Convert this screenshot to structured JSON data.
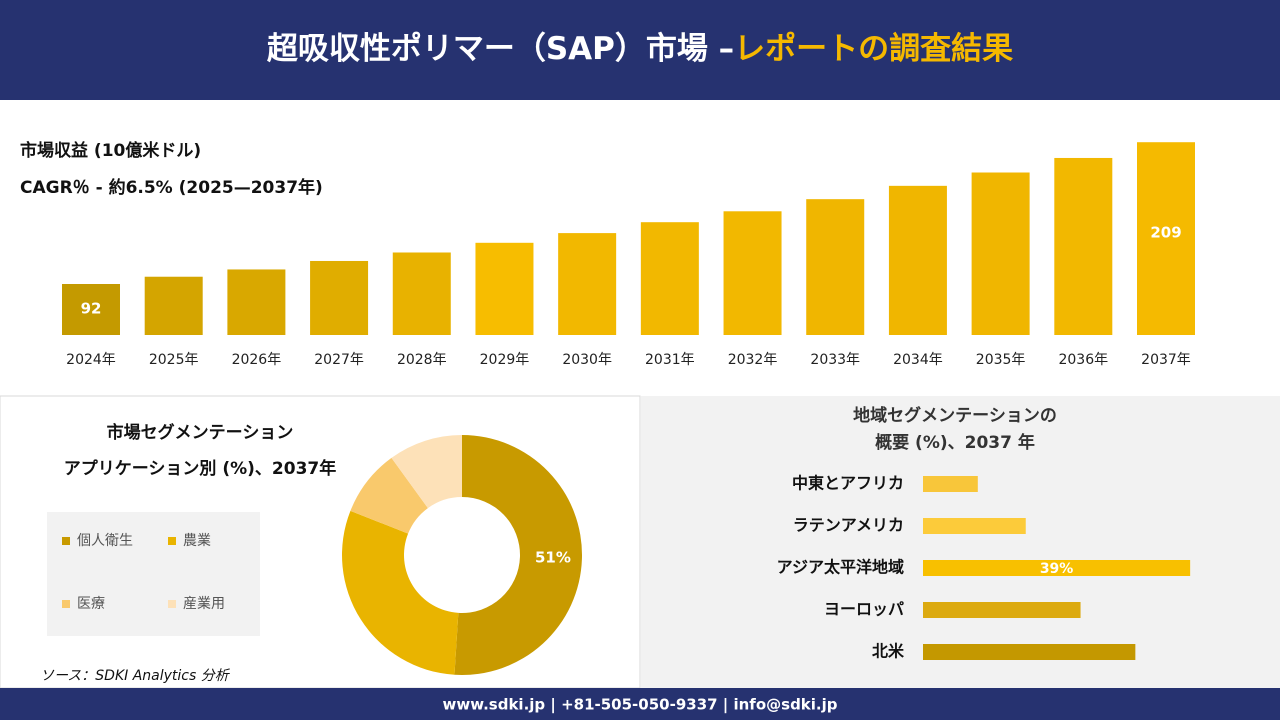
{
  "header": {
    "title_main": "超吸収性ポリマー（SAP）市場 –",
    "title_highlight": "レポートの調査結果"
  },
  "chart_data": [
    {
      "type": "bar",
      "title": "市場収益 (10億米ドル)",
      "subtitle": "CAGR％ - 約6.5% (2025—2037年)",
      "categories": [
        "2024年",
        "2025年",
        "2026年",
        "2027年",
        "2028年",
        "2029年",
        "2030年",
        "2031年",
        "2032年",
        "2033年",
        "2034年",
        "2035年",
        "2036年",
        "2037年"
      ],
      "values": [
        92,
        98,
        104,
        111,
        118,
        126,
        134,
        143,
        152,
        162,
        173,
        184,
        196,
        209
      ],
      "value_labels": [
        "92",
        null,
        null,
        null,
        null,
        null,
        null,
        null,
        null,
        null,
        null,
        null,
        null,
        "209"
      ],
      "colors": [
        "#c49a00",
        "#d4a500",
        "#d9a800",
        "#e0ad00",
        "#e8b200",
        "#f7bd00",
        "#f2b800",
        "#f2b800",
        "#f2b800",
        "#f0b600",
        "#f0b600",
        "#f0b600",
        "#f2b800",
        "#f5ba00"
      ],
      "ylim": [
        50,
        210
      ]
    },
    {
      "type": "donut",
      "title": "市場セグメンテーション",
      "subtitle": "アプリケーション別 (%)、2037年",
      "categories": [
        "個人衛生",
        "農業",
        "医療",
        "産業用"
      ],
      "values": [
        51,
        30,
        9,
        10
      ],
      "value_labels": [
        "51%",
        null,
        null,
        null
      ],
      "colors": [
        "#c89a00",
        "#e9b400",
        "#f9c96c",
        "#fde1b8"
      ]
    },
    {
      "type": "hbar",
      "title": "地域セグメンテーションの",
      "subtitle": "概要 (%)、2037 年",
      "categories": [
        "中東とアフリカ",
        "ラテンアメリカ",
        "アジア太平洋地域",
        "ヨーロッパ",
        "北米"
      ],
      "values": [
        8,
        15,
        39,
        23,
        31
      ],
      "value_labels": [
        null,
        null,
        "39%",
        null,
        null
      ],
      "colors": [
        "#f8c63a",
        "#fccb3a",
        "#f8c000",
        "#dcaa10",
        "#c49800"
      ],
      "xlim": [
        0,
        40
      ]
    }
  ],
  "source": "ソース：SDKI Analytics 分析",
  "footer": "www.sdki.jp | +81-505-050-9337 | info@sdki.jp"
}
